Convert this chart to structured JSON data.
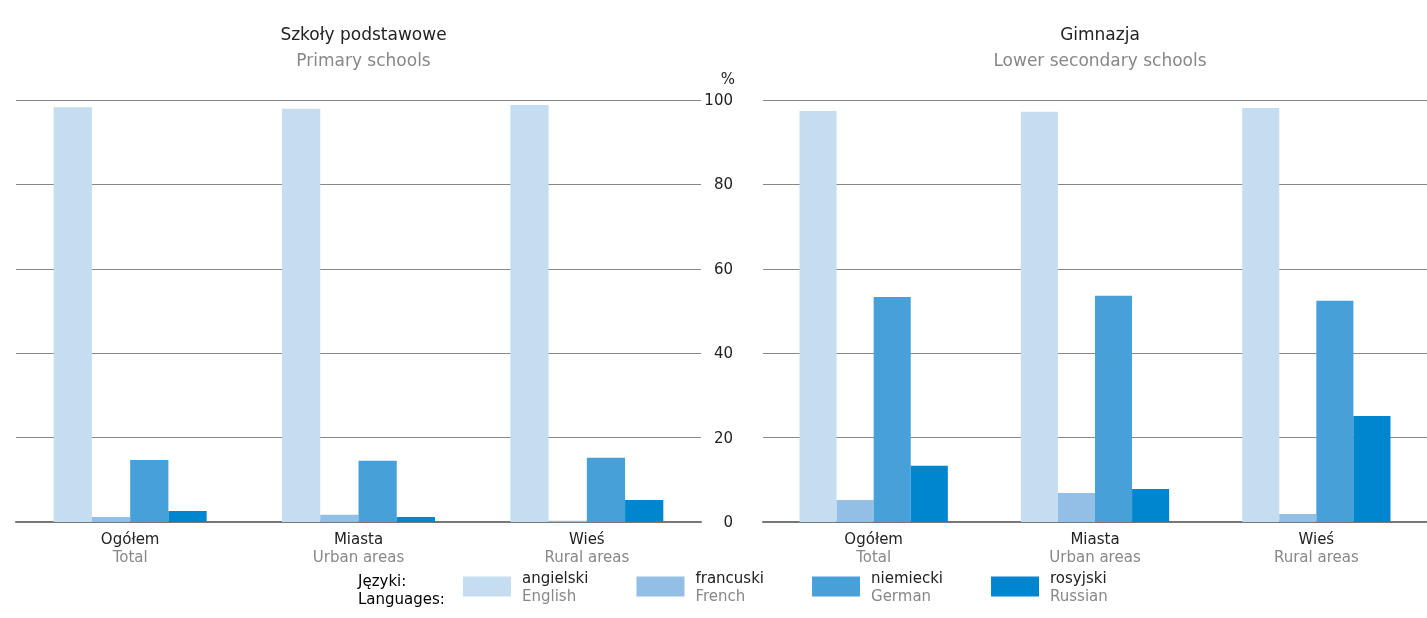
{
  "chart_data": [
    {
      "type": "bar",
      "title": "Szkoły podstawowe",
      "subtitle": "Primary schools",
      "categories": [
        "Ogółem\nTotal",
        "Miasta\nUrban areas",
        "Wieś\nRural areas"
      ],
      "series": [
        {
          "color": "#c5ddf1",
          "values": [
            98.3,
            97.9,
            98.8
          ]
        },
        {
          "color": "#93bfe6",
          "values": [
            1.2,
            1.7,
            0.3
          ]
        },
        {
          "color": "#48a0d8",
          "values": [
            14.7,
            14.5,
            15.2
          ]
        },
        {
          "color": "#0085cf",
          "values": [
            2.6,
            1.2,
            5.2
          ]
        }
      ],
      "ylim": [
        0,
        100
      ],
      "yticks": [
        0,
        20,
        40,
        60,
        80,
        100
      ],
      "grid": "y",
      "tick_labels": "x"
    },
    {
      "type": "bar",
      "title": "Gimnazja",
      "subtitle": "Lower secondary schools",
      "ylabel": "%",
      "categories": [
        "Ogółem\nTotal",
        "Miasta\nUrban areas",
        "Wieś\nRural areas"
      ],
      "series": [
        {
          "name": "angielski\nEnglish",
          "color": "#c5ddf1",
          "values": [
            97.4,
            97.2,
            98.1
          ]
        },
        {
          "name": "francuski\nFrench",
          "color": "#93bfe6",
          "values": [
            5.2,
            6.9,
            1.9
          ]
        },
        {
          "name": "niemiecki\nGerman",
          "color": "#48a0d8",
          "values": [
            53.3,
            53.6,
            52.4
          ]
        },
        {
          "name": "rosyjski\nRussian",
          "color": "#0085cf",
          "values": [
            13.3,
            7.8,
            25.1
          ]
        }
      ],
      "ylim": [
        0,
        100
      ],
      "yticks": [
        0,
        20,
        40,
        60,
        80,
        100
      ],
      "grid": "y",
      "legend": "bottom",
      "legend_title": "Języki:\nLanguages:"
    }
  ]
}
